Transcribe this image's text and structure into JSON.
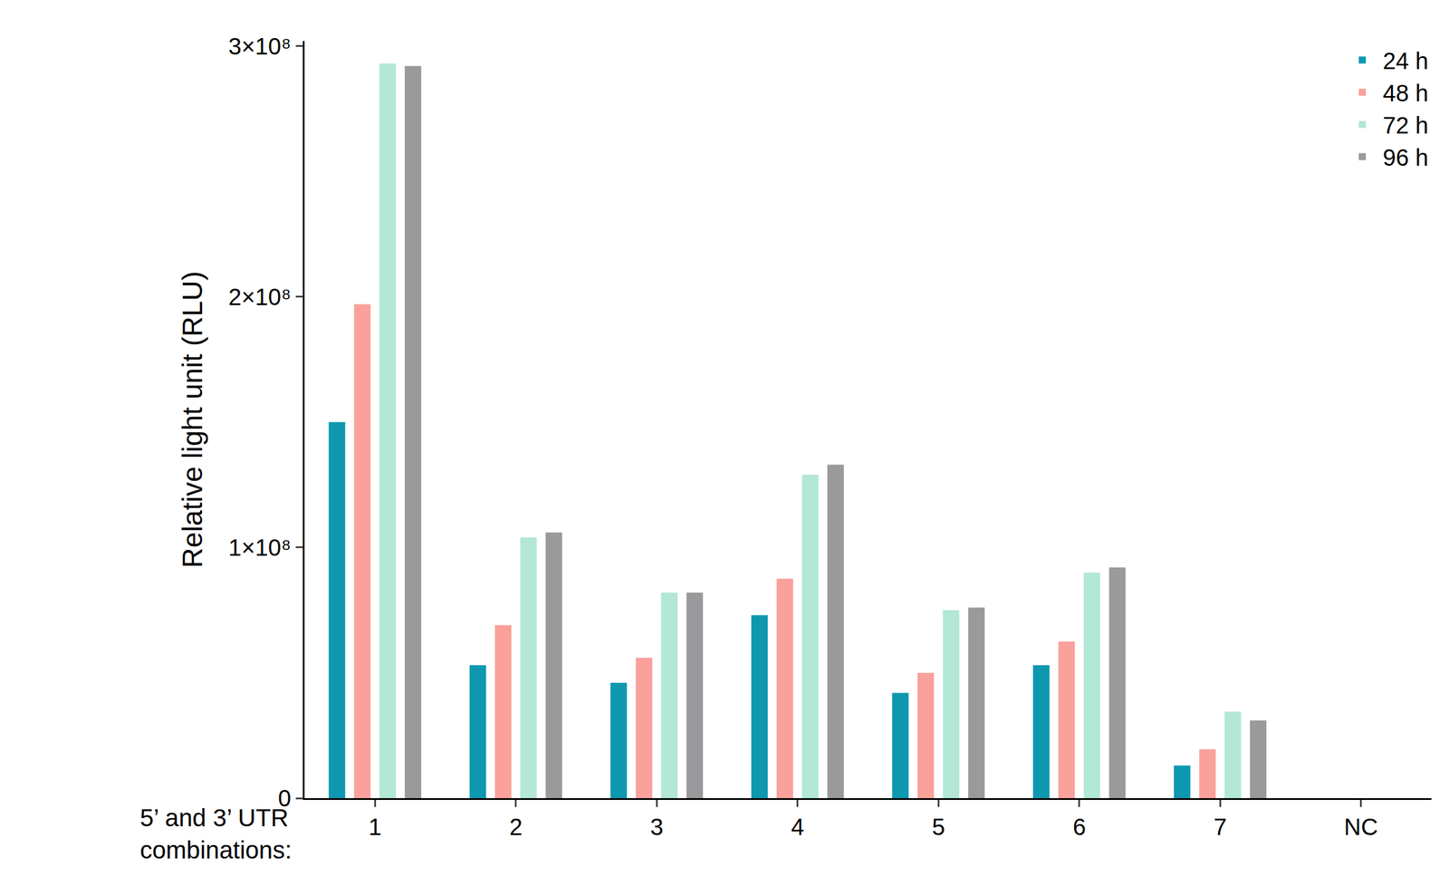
{
  "chart_data": {
    "type": "bar",
    "y_label": "Relative light unit (RLU)",
    "x_label": "5’ and 3’ UTR combinations:",
    "categories": [
      "1",
      "2",
      "3",
      "4",
      "5",
      "6",
      "7",
      "NC"
    ],
    "series": [
      {
        "name": "24 h",
        "color": "#0e98b0",
        "values": [
          150000000,
          53000000,
          46000000,
          73000000,
          42000000,
          53000000,
          13000000,
          0
        ]
      },
      {
        "name": "48 h",
        "color": "#f9a19a",
        "values": [
          197000000,
          69000000,
          56000000,
          87500000,
          50000000,
          62500000,
          19500000,
          0
        ]
      },
      {
        "name": "72 h",
        "color": "#b2e8d4",
        "values": [
          293000000,
          104000000,
          82000000,
          129000000,
          75000000,
          90000000,
          34500000,
          0
        ]
      },
      {
        "name": "96 h",
        "color": "#9a9a9d",
        "values": [
          292000000,
          106000000,
          82000000,
          133000000,
          76000000,
          92000000,
          31000000,
          0
        ]
      }
    ],
    "ylim": [
      0,
      302000000
    ],
    "yticks": [
      0,
      {
        "value": 100000000,
        "label": "1×10⁸"
      },
      {
        "value": 200000000,
        "label": "2×10⁸"
      },
      {
        "value": 300000000,
        "label": "3×10⁸"
      }
    ],
    "grid": false,
    "legend": "top-right"
  }
}
